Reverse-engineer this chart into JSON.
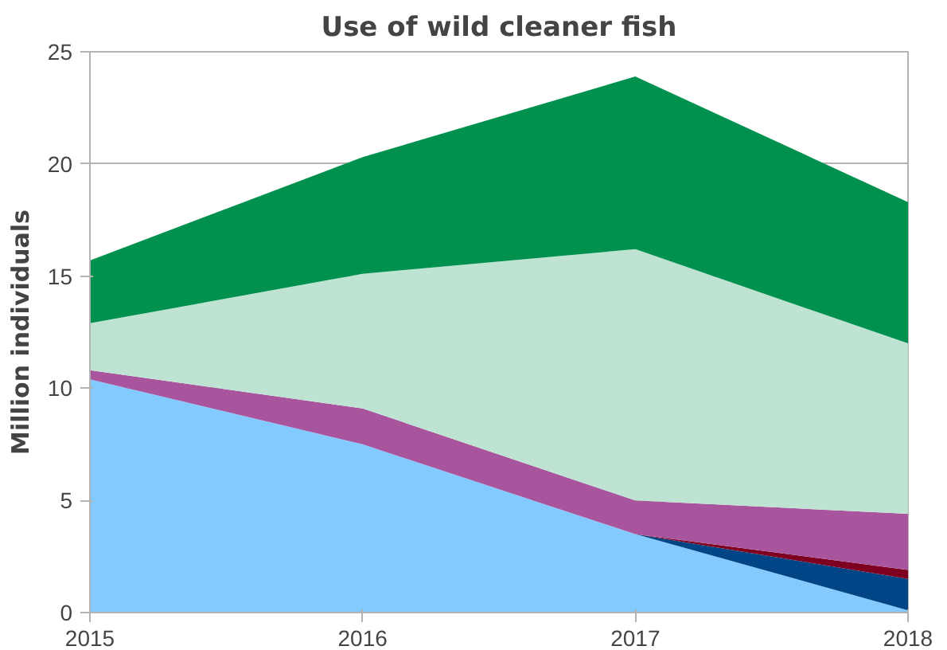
{
  "chart_data": {
    "type": "area",
    "stacked": true,
    "title": "Use of wild cleaner fish",
    "ylabel": "Million individuals",
    "x": [
      2015,
      2016,
      2017,
      2018
    ],
    "series": [
      {
        "color": "#83caff",
        "values": [
          10.4,
          7.5,
          3.5,
          0.1
        ]
      },
      {
        "color": "#004586",
        "values": [
          0,
          0,
          0,
          1.4
        ]
      },
      {
        "color": "#7e0021",
        "values": [
          0,
          0,
          0,
          0.4
        ]
      },
      {
        "color": "#a9559e",
        "values": [
          0.4,
          1.6,
          1.5,
          2.5
        ]
      },
      {
        "color": "#bee3d3",
        "values": [
          2.1,
          6.0,
          11.2,
          7.6
        ]
      },
      {
        "color": "#00914e",
        "values": [
          2.8,
          5.2,
          7.7,
          6.3
        ]
      }
    ],
    "xlim": [
      2015,
      2018
    ],
    "xticks": [
      2015,
      2016,
      2017,
      2018
    ],
    "ylim": [
      0,
      25
    ],
    "yticks": [
      0,
      5,
      10,
      15,
      20,
      25
    ],
    "grid": "y"
  }
}
